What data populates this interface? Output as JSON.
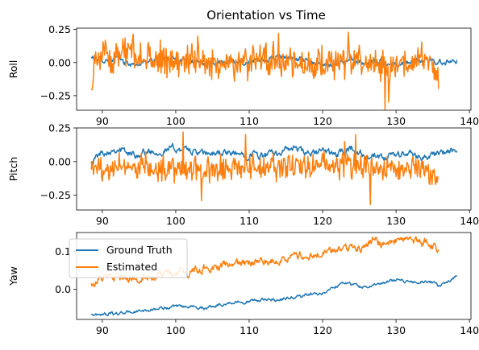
{
  "chart_data": {
    "type": "line",
    "title": "Orientation vs Time",
    "legend_placement": "upper-left (Yaw panel)",
    "series_styles": [
      {
        "name": "Ground Truth",
        "color": "#1f77b4"
      },
      {
        "name": "Estimated",
        "color": "#ff7f0e"
      }
    ],
    "panels": [
      {
        "id": "roll",
        "ylabel": "Roll",
        "xlim": [
          86.5,
          140.2
        ],
        "ylim": [
          -0.36,
          0.26
        ],
        "xticks": [
          90,
          100,
          110,
          120,
          130,
          140
        ],
        "xtick_labels": [
          "90",
          "100",
          "110",
          "120",
          "130",
          "140"
        ],
        "yticks": [
          -0.25,
          0,
          0.25
        ],
        "ytick_labels": [
          "−0.25",
          "0.00",
          "0.25"
        ],
        "series": [
          {
            "name": "Ground Truth",
            "x_start": 88.5,
            "x_end": 138.3,
            "keypoints": [
              [
                88.5,
                0.04
              ],
              [
                90,
                0.02
              ],
              [
                92,
                0.03
              ],
              [
                94,
                -0.02
              ],
              [
                96,
                0.01
              ],
              [
                98,
                0.02
              ],
              [
                100,
                0.03
              ],
              [
                102,
                0.02
              ],
              [
                104,
                -0.02
              ],
              [
                106,
                0.01
              ],
              [
                108,
                0.02
              ],
              [
                110,
                0.0
              ],
              [
                112,
                0.01
              ],
              [
                114,
                0.05
              ],
              [
                116,
                0.03
              ],
              [
                118,
                0.02
              ],
              [
                120,
                -0.03
              ],
              [
                122,
                0.0
              ],
              [
                124,
                0.02
              ],
              [
                126,
                -0.01
              ],
              [
                128,
                0.01
              ],
              [
                130,
                -0.01
              ],
              [
                132,
                0.0
              ],
              [
                134,
                0.02
              ],
              [
                136,
                0.0
              ],
              [
                138.3,
                0.02
              ]
            ],
            "noise": 0.015
          },
          {
            "name": "Estimated",
            "x_start": 88.5,
            "x_end": 135.8,
            "keypoints": [
              [
                88.5,
                -0.2
              ],
              [
                89,
                0.05
              ],
              [
                92,
                0.05
              ],
              [
                94,
                0.08
              ],
              [
                96,
                0.05
              ],
              [
                98,
                0.02
              ],
              [
                100,
                0.01
              ],
              [
                102,
                0.03
              ],
              [
                104,
                0.02
              ],
              [
                106,
                -0.02
              ],
              [
                108,
                0.0
              ],
              [
                110,
                0.01
              ],
              [
                112,
                0.05
              ],
              [
                114,
                0.02
              ],
              [
                116,
                0.0
              ],
              [
                118,
                -0.05
              ],
              [
                120,
                0.0
              ],
              [
                122,
                -0.02
              ],
              [
                124,
                0.03
              ],
              [
                126,
                0.0
              ],
              [
                128,
                -0.05
              ],
              [
                130,
                -0.02
              ],
              [
                132,
                0.0
              ],
              [
                134,
                0.02
              ],
              [
                135.5,
                -0.02
              ],
              [
                135.8,
                -0.2
              ]
            ],
            "noise": 0.11,
            "spikes": [
              [
                103,
                0.2
              ],
              [
                114,
                0.22
              ],
              [
                123.5,
                0.23
              ],
              [
                128.5,
                -0.36
              ],
              [
                129,
                -0.3
              ]
            ]
          }
        ]
      },
      {
        "id": "pitch",
        "ylabel": "Pitch",
        "xlim": [
          86.5,
          140.2
        ],
        "ylim": [
          -0.36,
          0.25
        ],
        "xticks": [
          90,
          100,
          110,
          120,
          130,
          140
        ],
        "xtick_labels": [
          "90",
          "100",
          "110",
          "120",
          "130",
          "140"
        ],
        "yticks": [
          -0.25,
          0,
          0.25
        ],
        "ytick_labels": [
          "−0.25",
          "0.00",
          "0.25"
        ],
        "series": [
          {
            "name": "Ground Truth",
            "x_start": 88.5,
            "x_end": 138.3,
            "keypoints": [
              [
                88.5,
                0.0
              ],
              [
                90,
                0.07
              ],
              [
                92,
                0.1
              ],
              [
                94,
                0.05
              ],
              [
                96,
                0.07
              ],
              [
                98,
                0.08
              ],
              [
                100,
                0.1
              ],
              [
                102,
                0.08
              ],
              [
                104,
                0.05
              ],
              [
                106,
                0.07
              ],
              [
                108,
                0.05
              ],
              [
                110,
                0.06
              ],
              [
                112,
                0.04
              ],
              [
                114,
                0.07
              ],
              [
                116,
                0.1
              ],
              [
                118,
                0.05
              ],
              [
                120,
                0.08
              ],
              [
                122,
                0.05
              ],
              [
                124,
                0.1
              ],
              [
                126,
                0.03
              ],
              [
                128,
                0.02
              ],
              [
                130,
                0.05
              ],
              [
                132,
                0.06
              ],
              [
                134,
                0.03
              ],
              [
                136,
                0.06
              ],
              [
                138.3,
                0.08
              ]
            ],
            "noise": 0.02
          },
          {
            "name": "Estimated",
            "x_start": 88.5,
            "x_end": 135.8,
            "keypoints": [
              [
                88.5,
                -0.06
              ],
              [
                90,
                -0.05
              ],
              [
                92,
                -0.02
              ],
              [
                94,
                -0.03
              ],
              [
                96,
                -0.04
              ],
              [
                98,
                -0.05
              ],
              [
                100,
                -0.05
              ],
              [
                102,
                -0.06
              ],
              [
                104,
                -0.07
              ],
              [
                106,
                -0.06
              ],
              [
                108,
                -0.05
              ],
              [
                110,
                -0.06
              ],
              [
                112,
                -0.05
              ],
              [
                114,
                -0.03
              ],
              [
                116,
                -0.05
              ],
              [
                118,
                -0.04
              ],
              [
                120,
                -0.02
              ],
              [
                122,
                -0.05
              ],
              [
                124,
                -0.02
              ],
              [
                126,
                -0.05
              ],
              [
                128,
                -0.06
              ],
              [
                130,
                -0.05
              ],
              [
                132,
                -0.05
              ],
              [
                134,
                -0.06
              ],
              [
                135.8,
                -0.12
              ]
            ],
            "noise": 0.09,
            "spikes": [
              [
                101,
                0.22
              ],
              [
                103.5,
                -0.29
              ],
              [
                109.5,
                0.2
              ],
              [
                123,
                0.15
              ],
              [
                124.5,
                0.2
              ],
              [
                126.5,
                -0.32
              ]
            ]
          }
        ]
      },
      {
        "id": "yaw",
        "ylabel": "Yaw",
        "xlim": [
          86.5,
          140.2
        ],
        "ylim": [
          -0.08,
          0.15
        ],
        "xticks": [
          90,
          100,
          110,
          120,
          130,
          140
        ],
        "xtick_labels": [
          "90",
          "100",
          "110",
          "120",
          "130",
          "140"
        ],
        "yticks": [
          0,
          0.1
        ],
        "ytick_labels": [
          "0.0",
          "0.1"
        ],
        "series": [
          {
            "name": "Ground Truth",
            "x_start": 88.5,
            "x_end": 138.3,
            "keypoints": [
              [
                88.5,
                -0.067
              ],
              [
                92,
                -0.065
              ],
              [
                94,
                -0.06
              ],
              [
                96,
                -0.057
              ],
              [
                98,
                -0.05
              ],
              [
                100,
                -0.048
              ],
              [
                102,
                -0.045
              ],
              [
                104,
                -0.05
              ],
              [
                106,
                -0.04
              ],
              [
                108,
                -0.035
              ],
              [
                110,
                -0.032
              ],
              [
                112,
                -0.028
              ],
              [
                114,
                -0.027
              ],
              [
                116,
                -0.022
              ],
              [
                118,
                -0.015
              ],
              [
                120,
                -0.01
              ],
              [
                121,
                0.0
              ],
              [
                122,
                0.01
              ],
              [
                123,
                0.02
              ],
              [
                124,
                0.012
              ],
              [
                126,
                0.005
              ],
              [
                128,
                0.015
              ],
              [
                130,
                0.025
              ],
              [
                132,
                0.02
              ],
              [
                134,
                0.02
              ],
              [
                136,
                0.01
              ],
              [
                137,
                0.02
              ],
              [
                138.3,
                0.035
              ]
            ],
            "noise": 0.003
          },
          {
            "name": "Estimated",
            "x_start": 88.5,
            "x_end": 135.8,
            "keypoints": [
              [
                88.5,
                0.015
              ],
              [
                90,
                0.03
              ],
              [
                92,
                0.028
              ],
              [
                94,
                0.025
              ],
              [
                96,
                0.035
              ],
              [
                98,
                0.04
              ],
              [
                100,
                0.04
              ],
              [
                102,
                0.045
              ],
              [
                104,
                0.055
              ],
              [
                106,
                0.06
              ],
              [
                108,
                0.065
              ],
              [
                110,
                0.07
              ],
              [
                112,
                0.075
              ],
              [
                114,
                0.078
              ],
              [
                116,
                0.085
              ],
              [
                118,
                0.09
              ],
              [
                120,
                0.095
              ],
              [
                122,
                0.105
              ],
              [
                124,
                0.11
              ],
              [
                126,
                0.112
              ],
              [
                127,
                0.14
              ],
              [
                128,
                0.118
              ],
              [
                130,
                0.12
              ],
              [
                132,
                0.13
              ],
              [
                134,
                0.125
              ],
              [
                135.8,
                0.105
              ]
            ],
            "noise": 0.008
          }
        ]
      }
    ]
  },
  "legend": {
    "entries": [
      {
        "label": "Ground Truth",
        "color": "#1f77b4"
      },
      {
        "label": "Estimated",
        "color": "#ff7f0e"
      }
    ]
  }
}
